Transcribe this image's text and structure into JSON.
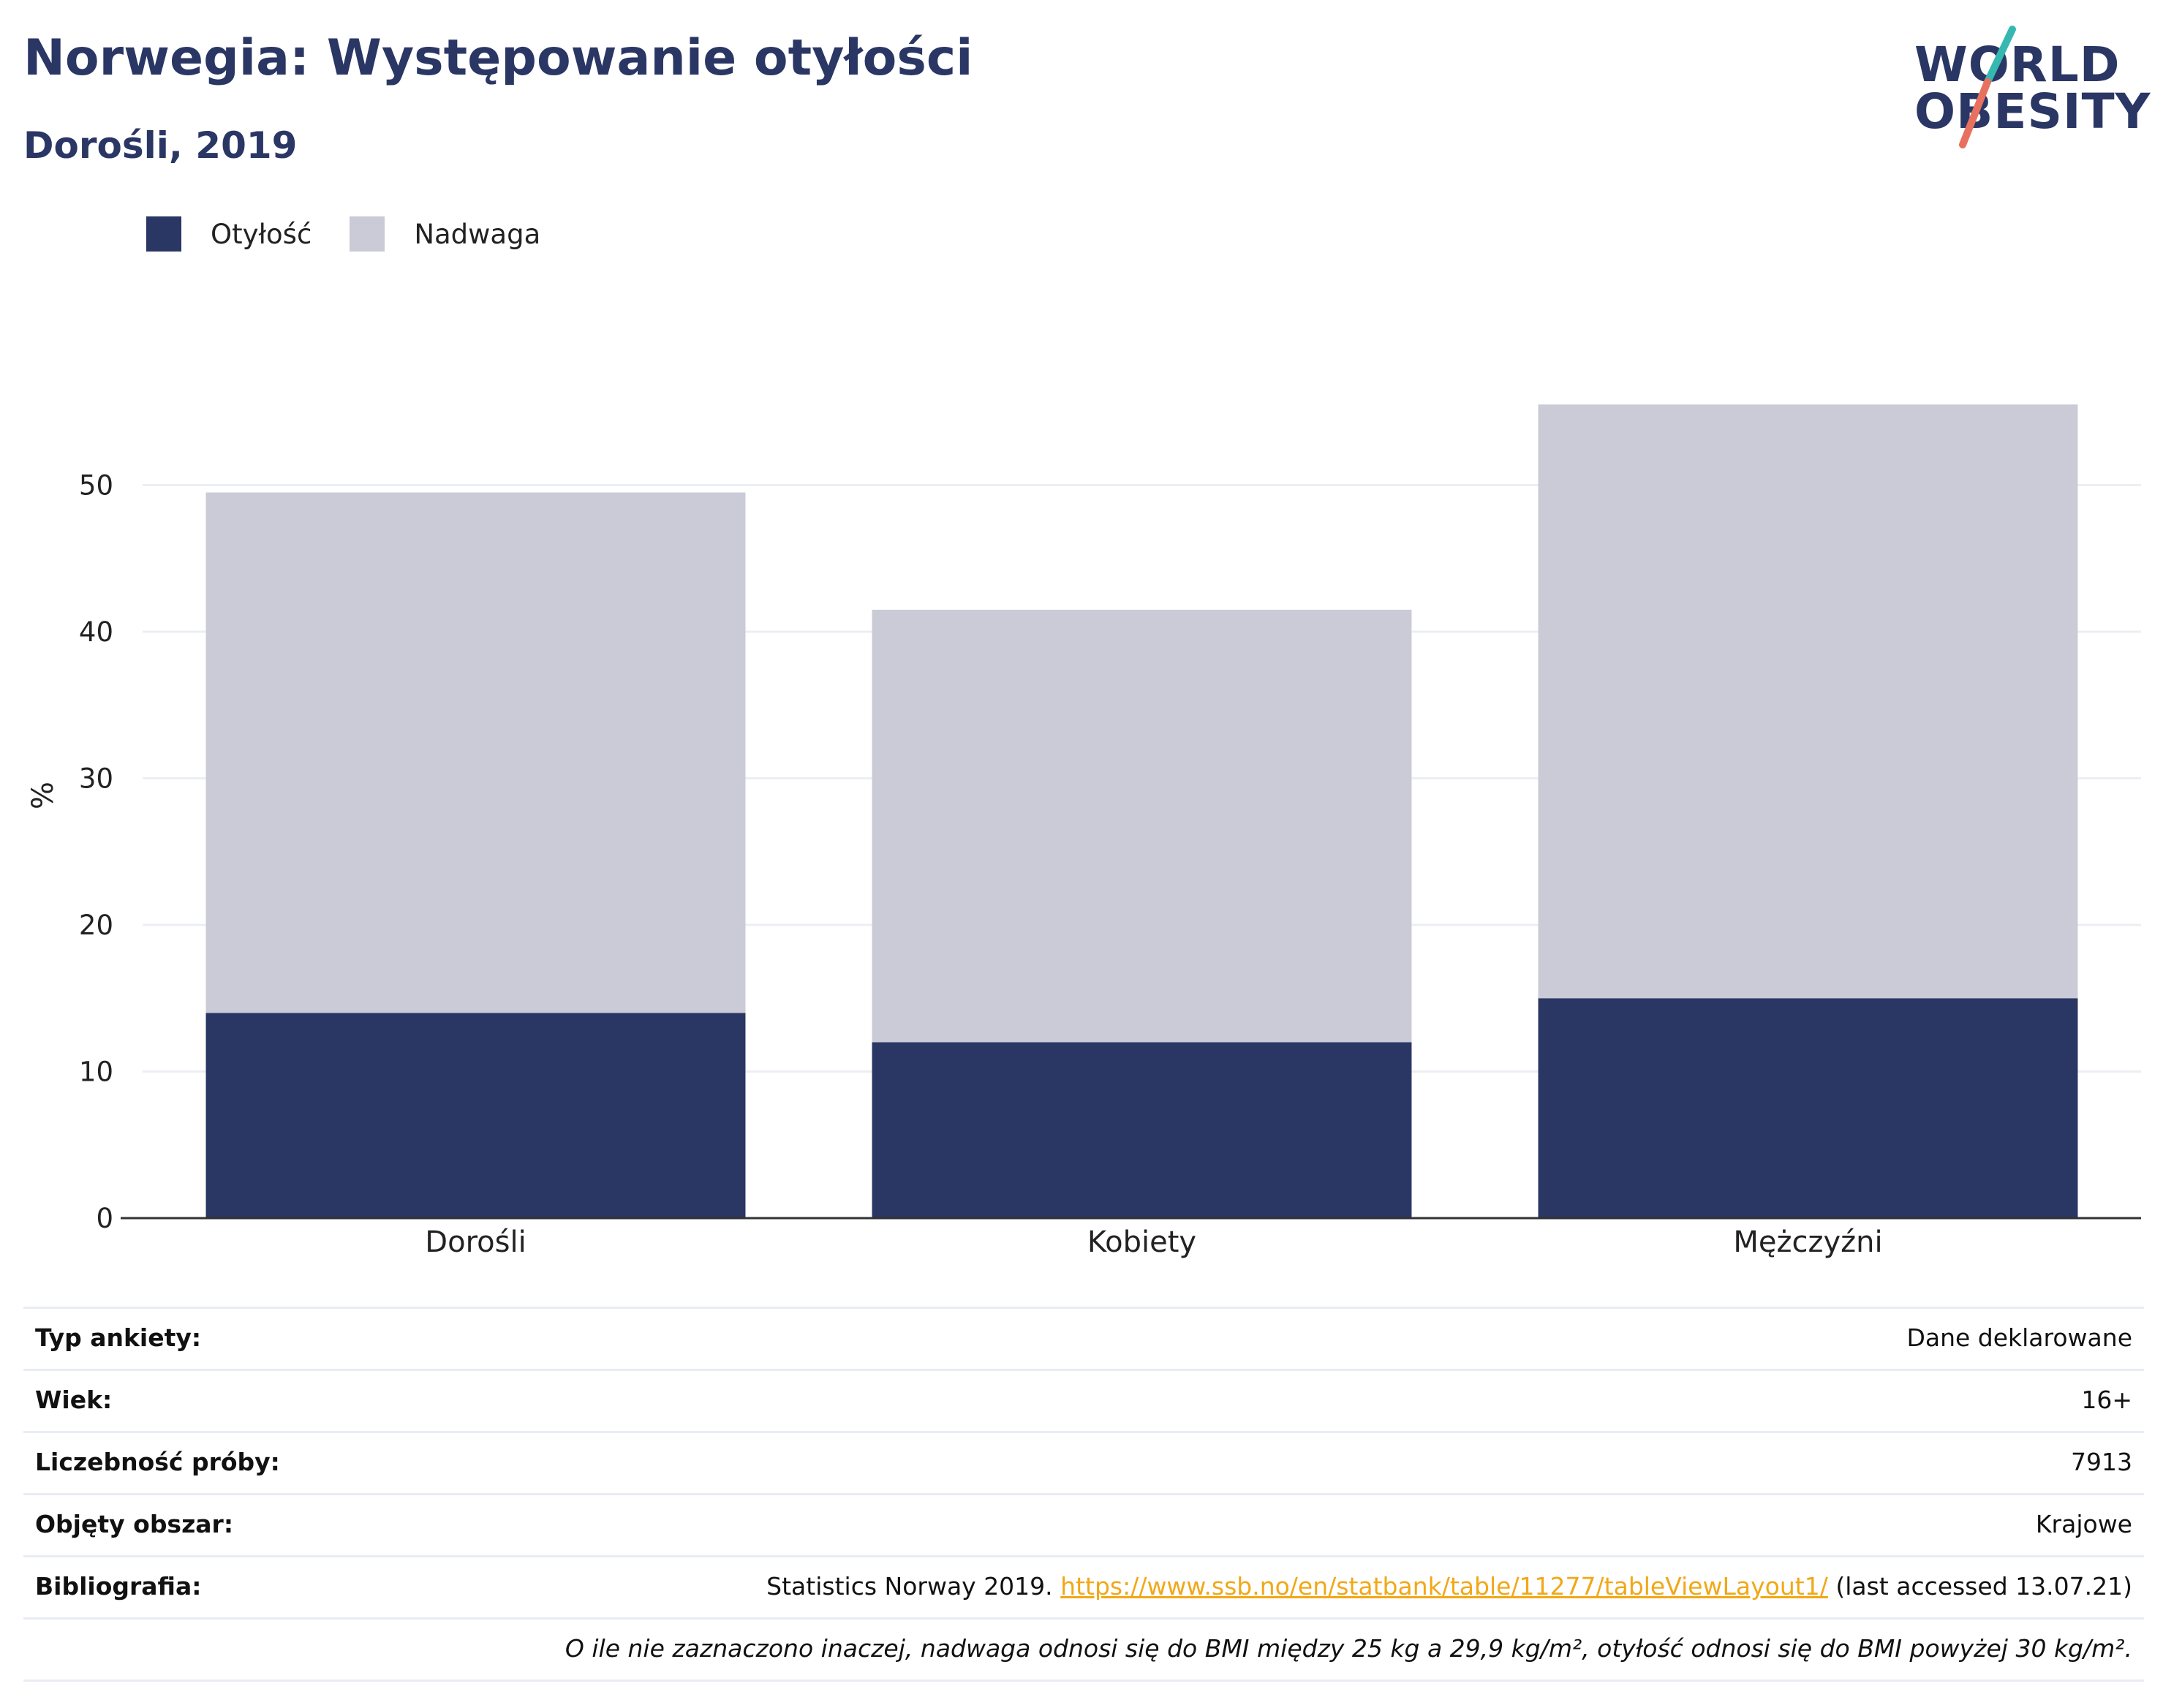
{
  "header": {
    "title": "Norwegia: Występowanie otyłości",
    "subtitle": "Dorośli, 2019"
  },
  "logo": {
    "line1": "WORLD",
    "line2": "OBESITY"
  },
  "legend": [
    {
      "label": "Otyłość",
      "color": "#2a3664"
    },
    {
      "label": "Nadwaga",
      "color": "#cacbd7"
    }
  ],
  "chart_data": {
    "type": "bar",
    "stacked": true,
    "categories": [
      "Dorośli",
      "Kobiety",
      "Mężczyźni"
    ],
    "series": [
      {
        "name": "Otyłość",
        "values": [
          14.0,
          12.0,
          15.0
        ],
        "color": "#2a3664"
      },
      {
        "name": "Nadwaga",
        "values": [
          35.5,
          29.5,
          40.5
        ],
        "color": "#cacbd7"
      }
    ],
    "ylabel": "%",
    "ylim": [
      0,
      60
    ],
    "yticks": [
      0,
      10,
      20,
      30,
      40,
      50
    ],
    "grid": true,
    "legend_position": "top-left"
  },
  "info": {
    "rows": [
      {
        "key": "Typ ankiety:",
        "value": "Dane deklarowane"
      },
      {
        "key": "Wiek:",
        "value": "16+"
      },
      {
        "key": "Liczebność próby:",
        "value": "7913"
      },
      {
        "key": "Objęty obszar:",
        "value": "Krajowe"
      }
    ],
    "bibliography": {
      "key": "Bibliografia:",
      "prefix": "Statistics Norway 2019. ",
      "link": "https://www.ssb.no/en/statbank/table/11277/tableViewLayout1/",
      "suffix": " (last accessed 13.07.21)"
    },
    "note": "O ile nie zaznaczono inaczej, nadwaga odnosi się do BMI między 25 kg a 29,9 kg/m², otyłość odnosi się do BMI powyżej 30 kg/m²."
  }
}
